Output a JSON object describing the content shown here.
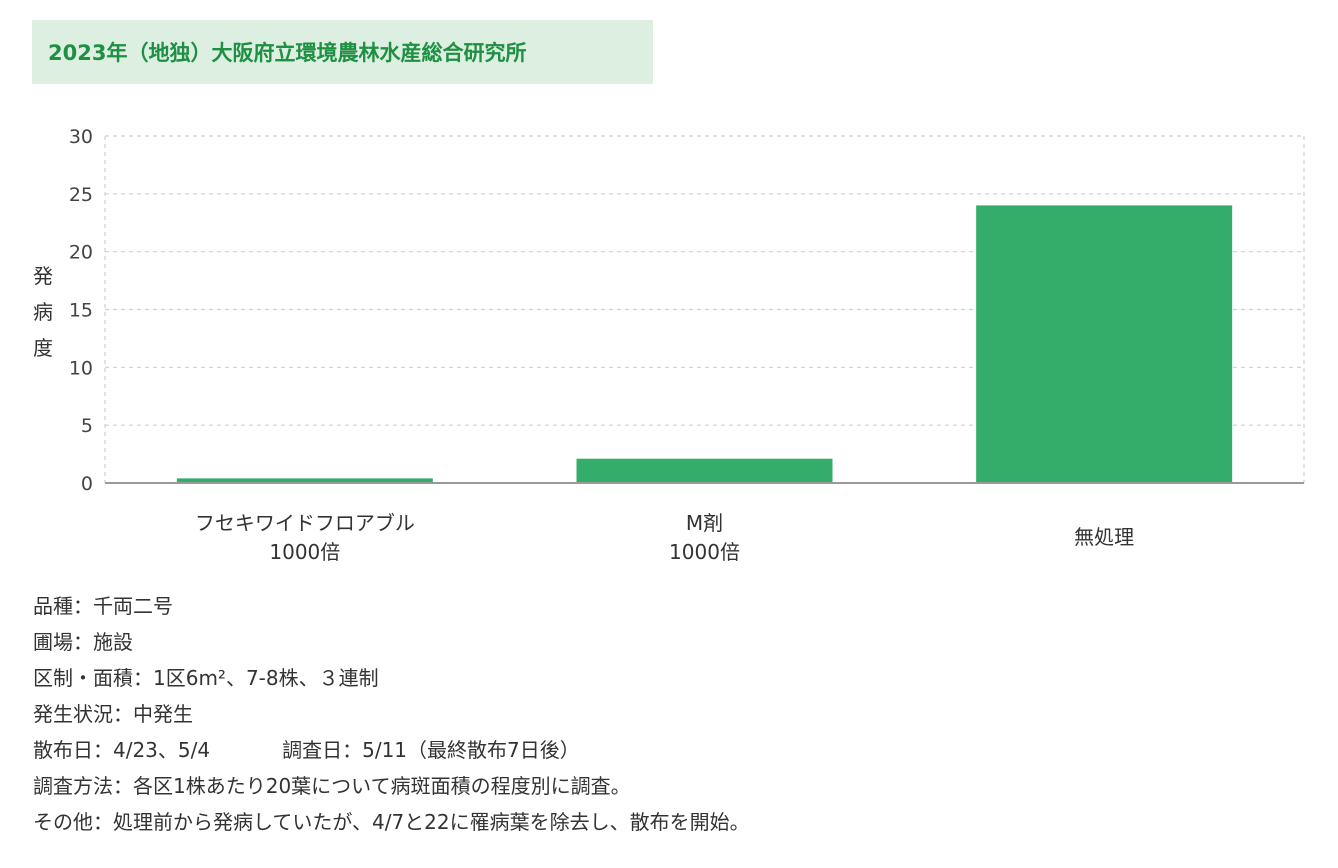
{
  "title": "2023年（地独）大阪府立環境農林水産総合研究所",
  "chart_data": {
    "type": "bar",
    "categories": [
      [
        "フセキワイドフロアブル",
        "1000倍"
      ],
      [
        "M剤",
        "1000倍"
      ],
      [
        "無処理"
      ]
    ],
    "values": [
      0.4,
      2.1,
      24.0
    ],
    "ylabel": "発病度",
    "ylim": [
      0,
      30
    ],
    "yticks": [
      0,
      5,
      10,
      15,
      20,
      25,
      30
    ],
    "grid": true,
    "bar_color": "#34ad6a"
  },
  "notes": {
    "variety": "品種：千両二号",
    "field": "圃場：施設",
    "plot": "区制・面積：1区6m²、7-8株、３連制",
    "disease": "発生状況：中発生",
    "spray": "散布日：4/23、5/4",
    "survey": "調査日：5/11（最終散布7日後）",
    "method": "調査方法：各区1株あたり20葉について病斑面積の程度別に調査。",
    "other": "その他：処理前から発病していたが、4/7と22に罹病葉を除去し、散布を開始。"
  }
}
